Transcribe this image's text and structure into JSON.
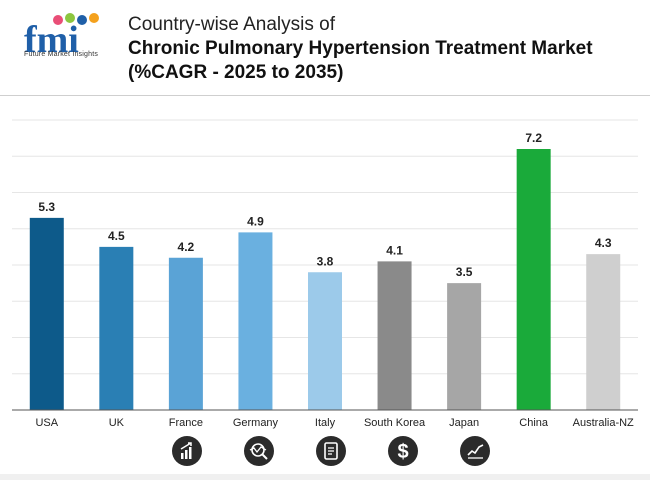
{
  "header": {
    "logo_text": "fmi",
    "logo_subtitle": "Future Market Insights",
    "title_line1": "Country-wise Analysis of",
    "title_line2": "Chronic Pulmonary Hypertension Treatment Market",
    "title_line3": "(%CAGR - 2025 to 2035)"
  },
  "chart_data": {
    "type": "bar",
    "title": "Country-wise Analysis of Chronic Pulmonary Hypertension Treatment Market (%CAGR - 2025 to 2035)",
    "xlabel": "",
    "ylabel": "",
    "ylim": [
      0,
      8
    ],
    "grid": true,
    "categories": [
      "USA",
      "UK",
      "France",
      "Germany",
      "Italy",
      "South Korea",
      "Japan",
      "China",
      "Australia-NZ"
    ],
    "values": [
      5.3,
      4.5,
      4.2,
      4.9,
      3.8,
      4.1,
      3.5,
      7.2,
      4.3
    ],
    "data_labels": [
      "5.3",
      "4.5",
      "4.2",
      "4.9",
      "3.8",
      "4.1",
      "3.5",
      "7.2",
      "4.3"
    ],
    "colors": [
      "#0d5a8a",
      "#2a7fb4",
      "#5aa3d6",
      "#6ab0e0",
      "#9ccaea",
      "#8a8a8a",
      "#a6a6a6",
      "#1aaa3a",
      "#cfcfcf"
    ]
  },
  "icons": [
    {
      "name": "growth-bars-icon"
    },
    {
      "name": "market-analysis-icon"
    },
    {
      "name": "report-document-icon"
    },
    {
      "name": "dollar-icon"
    },
    {
      "name": "trend-chart-icon"
    }
  ],
  "colors": {
    "logo_blue": "#1f5fa8",
    "icon_bg": "#2b2b2b",
    "gridline": "#e6e6e6"
  }
}
